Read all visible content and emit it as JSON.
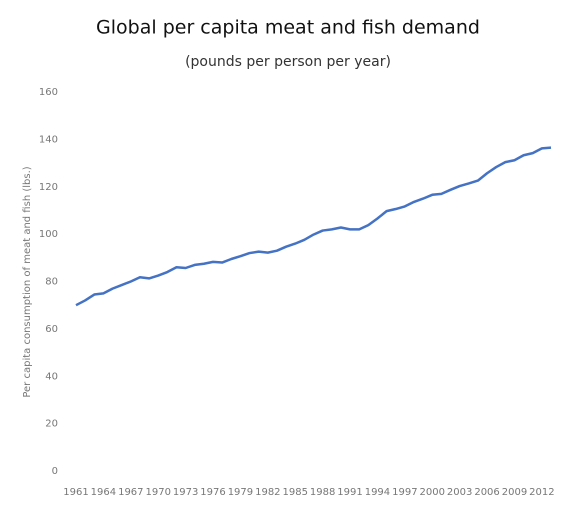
{
  "chart_data": {
    "type": "line",
    "title": "Global per capita meat and fish demand",
    "subtitle": "(pounds per person per year)",
    "y_label": "Per capita consumption of meat and fish (lbs.)",
    "x": [
      1961,
      1962,
      1963,
      1964,
      1965,
      1966,
      1967,
      1968,
      1969,
      1970,
      1971,
      1972,
      1973,
      1974,
      1975,
      1976,
      1977,
      1978,
      1979,
      1980,
      1981,
      1982,
      1983,
      1984,
      1985,
      1986,
      1987,
      1988,
      1989,
      1990,
      1991,
      1992,
      1993,
      1994,
      1995,
      1996,
      1997,
      1998,
      1999,
      2000,
      2001,
      2002,
      2003,
      2004,
      2005,
      2006,
      2007,
      2008,
      2009,
      2010,
      2011,
      2012,
      2013
    ],
    "values": [
      70,
      72,
      74.5,
      75,
      77,
      78.5,
      80,
      81.8,
      81.3,
      82.5,
      84,
      86,
      85.7,
      87,
      87.5,
      88.3,
      88,
      89.5,
      90.7,
      92,
      92.6,
      92.2,
      93,
      94.7,
      96,
      97.6,
      99.8,
      101.5,
      102,
      102.8,
      102,
      102,
      103.8,
      106.6,
      109.7,
      110.6,
      111.7,
      113.6,
      115,
      116.6,
      117,
      118.7,
      120.3,
      121.4,
      122.6,
      125.7,
      128.3,
      130.4,
      131.2,
      133.3,
      134.2,
      136.2,
      136.5
    ],
    "color": "#4472c4",
    "xlim": [
      1961,
      2013
    ],
    "xticks": [
      1961,
      1964,
      1967,
      1970,
      1973,
      1976,
      1979,
      1982,
      1985,
      1988,
      1991,
      1994,
      1997,
      2000,
      2003,
      2006,
      2009,
      2012
    ],
    "ylim": [
      0,
      160
    ],
    "yticks": [
      0,
      20,
      40,
      60,
      80,
      100,
      120,
      140,
      160
    ],
    "grid": false
  }
}
